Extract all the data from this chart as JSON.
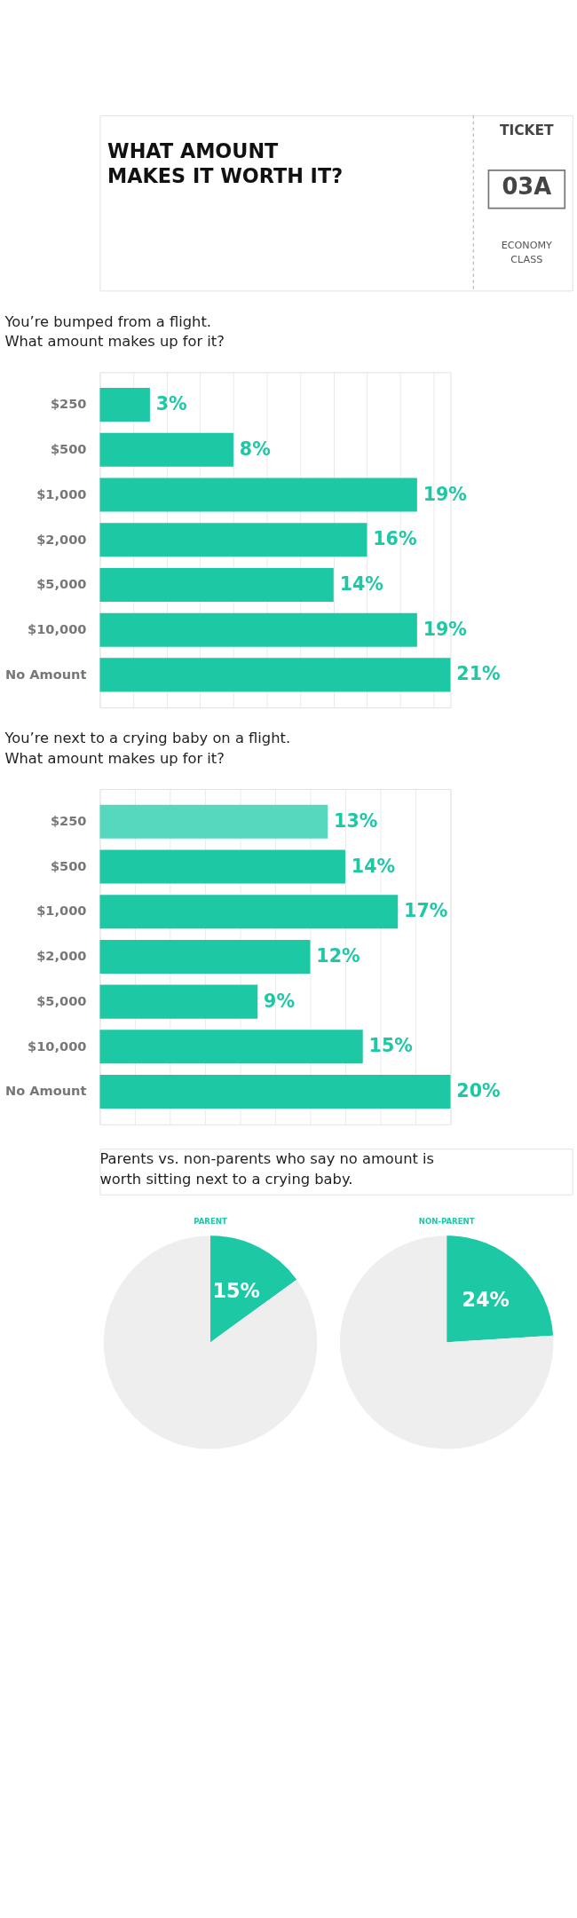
{
  "chart_data": [
    {
      "type": "other",
      "title": "WHAT AMOUNT\nMAKES IT WORTH IT?",
      "annotations": [
        "TICKET",
        "03A",
        "ECONOMY\nCLASS"
      ]
    },
    {
      "type": "bar",
      "orientation": "horizontal",
      "title": "You’re bumped from a flight.\nWhat amount makes up for it?",
      "categories": [
        "$250",
        "$500",
        "$1,000",
        "$2,000",
        "$5,000",
        "$10,000",
        "No Amount"
      ],
      "values": [
        3,
        8,
        19,
        16,
        14,
        19,
        21
      ],
      "colors": [
        "#1dc8a5",
        "#1dc8a5",
        "#1dc8a5",
        "#1dc8a5",
        "#1dc8a5",
        "#1dc8a5",
        "#1dc8a5"
      ],
      "value_labels": [
        "3%",
        "8%",
        "19%",
        "16%",
        "14%",
        "19%",
        "21%"
      ],
      "grid": "x",
      "tick_labels": "y"
    },
    {
      "type": "bar",
      "orientation": "horizontal",
      "title": "You’re next to a crying baby on a flight.\nWhat amount makes up for it?",
      "categories": [
        "$250",
        "$500",
        "$1,000",
        "$2,000",
        "$5,000",
        "$10,000",
        "No Amount"
      ],
      "values": [
        13,
        14,
        17,
        12,
        9,
        15,
        20
      ],
      "colors": [
        "#55d8bd",
        "#1dc8a5",
        "#1dc8a5",
        "#1dc8a5",
        "#1dc8a5",
        "#1dc8a5",
        "#1dc8a5"
      ],
      "value_labels": [
        "13%",
        "14%",
        "17%",
        "12%",
        "9%",
        "15%",
        "20%"
      ],
      "grid": "x",
      "tick_labels": "y"
    },
    {
      "type": "other",
      "title": "Parents vs. non-parents who say no amount is\nworth sitting next to a crying baby."
    },
    {
      "type": "pie",
      "title": "PARENT",
      "categories": [
        null,
        null
      ],
      "values": [
        15,
        85
      ],
      "colors": [
        "#1dc8a5",
        "#eeeeee"
      ],
      "value_labels": [
        "15%",
        null
      ]
    },
    {
      "type": "pie",
      "title": "NON-PARENT",
      "categories": [
        null,
        null
      ],
      "values": [
        24,
        76
      ],
      "colors": [
        "#1dc8a5",
        "#eeeeee"
      ],
      "value_labels": [
        "24%",
        null
      ]
    }
  ]
}
